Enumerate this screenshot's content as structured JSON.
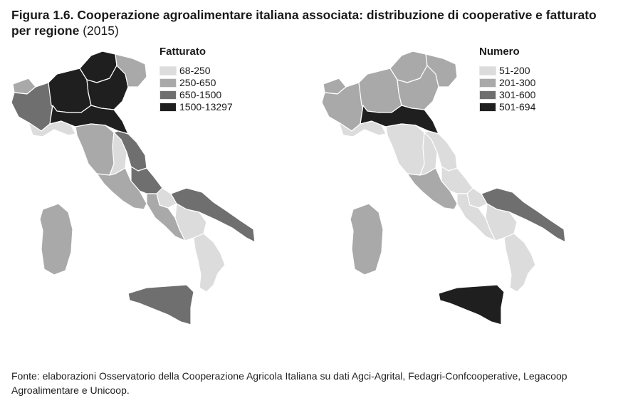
{
  "figure": {
    "title": "Figura 1.6. Cooperazione agroalimentare italiana associata: distribuzione di cooperative e fatturato per regione",
    "year": "(2015)",
    "source": "Fonte: elaborazioni Osservatorio della Cooperazione Agricola Italiana su dati Agci-Agrital, Fedagri-Confcooperative, Legacoop Agroalimentare e Unicoop."
  },
  "colors": {
    "class1": "#dcdcdc",
    "class2": "#a9a9a9",
    "class3": "#6f6f6f",
    "class4": "#1f1f1f",
    "border": "#ffffff"
  },
  "maps": [
    {
      "legend_title": "Fatturato",
      "legend": [
        {
          "label": "68-250",
          "class": 1
        },
        {
          "label": "250-650",
          "class": 2
        },
        {
          "label": "650-1500",
          "class": 3
        },
        {
          "label": "1500-13297",
          "class": 4
        }
      ],
      "regions": {
        "Valle d'Aosta": 2,
        "Piemonte": 3,
        "Lombardia": 4,
        "Trentino-Alto Adige": 4,
        "Veneto": 4,
        "Friuli-Venezia Giulia": 2,
        "Liguria": 1,
        "Emilia-Romagna": 4,
        "Toscana": 2,
        "Umbria": 1,
        "Marche": 3,
        "Lazio": 2,
        "Abruzzo": 3,
        "Molise": 1,
        "Campania": 2,
        "Puglia": 3,
        "Basilicata": 1,
        "Calabria": 1,
        "Sicilia": 3,
        "Sardegna": 2
      }
    },
    {
      "legend_title": "Numero",
      "legend": [
        {
          "label": "51-200",
          "class": 1
        },
        {
          "label": "201-300",
          "class": 2
        },
        {
          "label": "301-600",
          "class": 3
        },
        {
          "label": "501-694",
          "class": 4
        }
      ],
      "regions": {
        "Valle d'Aosta": 2,
        "Piemonte": 2,
        "Lombardia": 2,
        "Trentino-Alto Adige": 2,
        "Veneto": 2,
        "Friuli-Venezia Giulia": 2,
        "Liguria": 1,
        "Emilia-Romagna": 4,
        "Toscana": 1,
        "Umbria": 1,
        "Marche": 1,
        "Lazio": 2,
        "Abruzzo": 1,
        "Molise": 1,
        "Campania": 1,
        "Puglia": 3,
        "Basilicata": 1,
        "Calabria": 1,
        "Sicilia": 4,
        "Sardegna": 2
      }
    }
  ]
}
